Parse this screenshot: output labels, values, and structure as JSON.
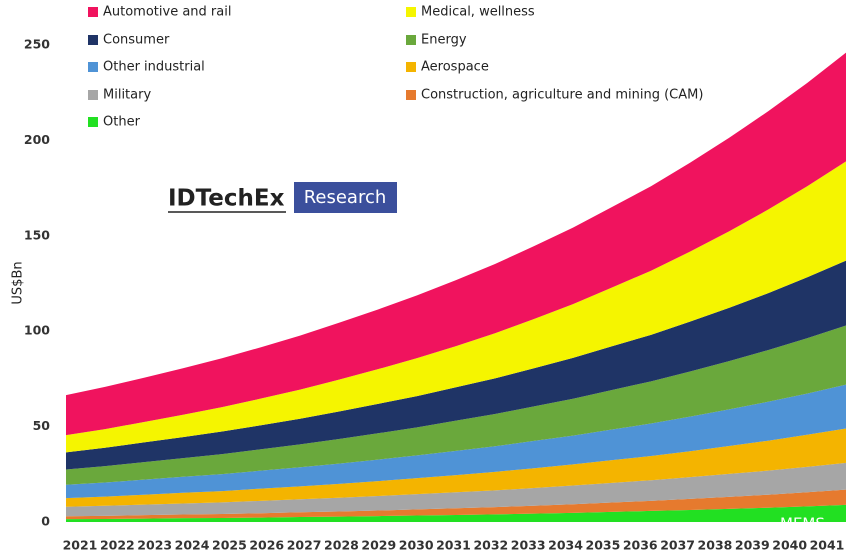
{
  "chart_data": {
    "type": "stacked-area",
    "y_label": "US$Bn",
    "logo": {
      "brand": "IDTechEx",
      "badge": "Research"
    },
    "watermark": "MEMS",
    "categories": [
      "2021",
      "2022",
      "2023",
      "2024",
      "2025",
      "2026",
      "2027",
      "2028",
      "2029",
      "2030",
      "2031",
      "2032",
      "2033",
      "2034",
      "2035",
      "2036",
      "2037",
      "2038",
      "2039",
      "2040",
      "2041"
    ],
    "ylim": [
      0,
      250
    ],
    "yticks": [
      0,
      50,
      100,
      150,
      200,
      250
    ],
    "series": [
      {
        "name": "Automotive and rail",
        "color": "#f0135e",
        "values": [
          21.0,
          22.1,
          23.2,
          24.4,
          25.6,
          26.9,
          28.3,
          29.8,
          31.3,
          32.9,
          34.6,
          36.3,
          38.2,
          40.1,
          42.2,
          44.3,
          46.6,
          49.0,
          51.5,
          54.1,
          57.0
        ]
      },
      {
        "name": "Medical, wellness",
        "color": "#f5f500",
        "values": [
          9.0,
          9.8,
          10.7,
          11.7,
          12.8,
          14.0,
          15.3,
          16.7,
          18.2,
          19.9,
          21.6,
          23.6,
          25.8,
          28.2,
          30.8,
          33.6,
          36.7,
          40.1,
          43.8,
          47.7,
          52.0
        ]
      },
      {
        "name": "Consumer",
        "color": "#1f3466",
        "values": [
          9.0,
          9.6,
          10.3,
          11.0,
          11.8,
          12.6,
          13.4,
          14.4,
          15.4,
          16.4,
          17.5,
          18.7,
          20.0,
          21.4,
          22.9,
          24.4,
          26.1,
          27.9,
          29.8,
          31.9,
          34.0
        ]
      },
      {
        "name": "Energy",
        "color": "#6aa83c",
        "values": [
          8.0,
          8.6,
          9.2,
          9.8,
          10.5,
          11.2,
          12.0,
          12.9,
          13.8,
          14.7,
          15.8,
          16.9,
          18.1,
          19.3,
          20.7,
          22.1,
          23.7,
          25.3,
          27.1,
          29.0,
          31.0
        ]
      },
      {
        "name": "Other industrial",
        "color": "#4f93d6",
        "values": [
          7.0,
          7.4,
          7.9,
          8.4,
          8.9,
          9.4,
          10.0,
          10.6,
          11.3,
          11.9,
          12.7,
          13.4,
          14.3,
          15.1,
          16.1,
          17.0,
          18.1,
          19.2,
          20.4,
          21.6,
          23.0
        ]
      },
      {
        "name": "Aerospace",
        "color": "#f4b400",
        "values": [
          4.5,
          4.8,
          5.2,
          5.6,
          5.9,
          6.4,
          6.8,
          7.3,
          7.8,
          8.4,
          9.0,
          9.7,
          10.4,
          11.1,
          11.9,
          12.7,
          13.6,
          14.6,
          15.7,
          16.8,
          18.0
        ]
      },
      {
        "name": "Military",
        "color": "#a6a6a6",
        "values": [
          5.0,
          5.3,
          5.5,
          5.8,
          6.1,
          6.5,
          6.8,
          7.2,
          7.6,
          8.0,
          8.4,
          8.8,
          9.3,
          9.8,
          10.3,
          10.8,
          11.4,
          12.0,
          12.6,
          13.3,
          14.0
        ]
      },
      {
        "name": "Construction, agriculture and mining (CAM)",
        "color": "#e67a2e",
        "values": [
          1.5,
          1.6,
          1.8,
          1.9,
          2.1,
          2.3,
          2.5,
          2.7,
          2.9,
          3.2,
          3.5,
          3.8,
          4.1,
          4.5,
          4.9,
          5.3,
          5.8,
          6.3,
          6.8,
          7.4,
          8.0
        ]
      },
      {
        "name": "Other",
        "color": "#22e022",
        "values": [
          1.5,
          1.6,
          1.8,
          2.0,
          2.1,
          2.3,
          2.6,
          2.8,
          3.1,
          3.4,
          3.7,
          4.0,
          4.4,
          4.8,
          5.3,
          5.8,
          6.3,
          6.9,
          7.5,
          8.2,
          9.0
        ]
      }
    ]
  }
}
